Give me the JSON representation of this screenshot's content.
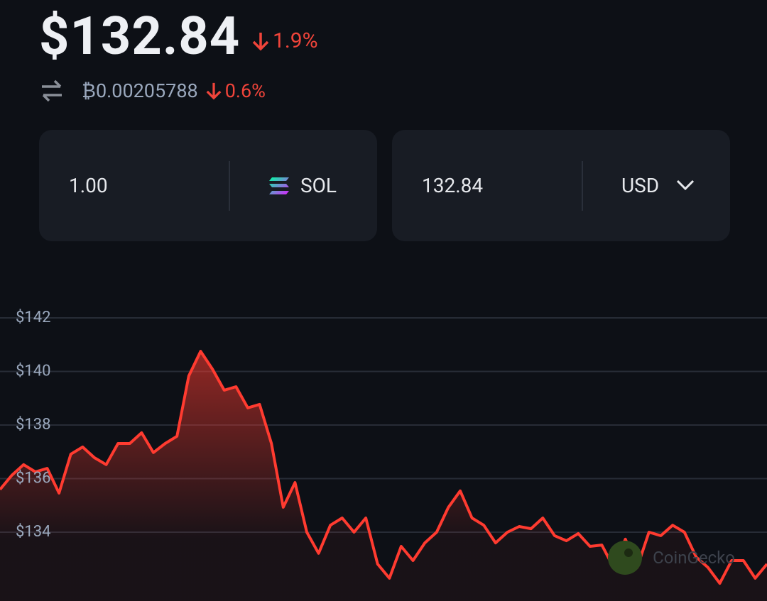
{
  "price": "$132.84",
  "price_change": "1.9%",
  "btc_price": "₿0.00205788",
  "btc_change": "0.6%",
  "converter": {
    "amount": "1.00",
    "coin": "SOL",
    "fiat_amount": "132.84",
    "fiat": "USD"
  },
  "watermark": "CoinGecko",
  "chart_data": {
    "type": "area",
    "color": "#ff3b30",
    "values": [
      135.59,
      136.12,
      136.52,
      136.25,
      136.38,
      135.46,
      136.91,
      137.18,
      136.78,
      136.52,
      137.31,
      137.31,
      137.71,
      136.97,
      137.31,
      137.58,
      139.83,
      140.75,
      140.09,
      139.3,
      139.43,
      138.64,
      138.77,
      137.31,
      134.93,
      135.85,
      134.0,
      133.21,
      134.26,
      134.53,
      134.0,
      134.53,
      132.81,
      132.28,
      133.47,
      132.94,
      133.6,
      134.0,
      134.93,
      135.54,
      134.53,
      134.26,
      133.6,
      134.0,
      134.21,
      134.13,
      134.53,
      133.87,
      133.68,
      133.95,
      133.47,
      133.52,
      132.68,
      133.74,
      132.68,
      134.0,
      133.87,
      134.26,
      134.0,
      133.07,
      132.68,
      132.09,
      132.94,
      132.94,
      132.28,
      132.81
    ],
    "ylim": [
      131.43,
      143.27
    ],
    "yticks": [
      {
        "value": 134,
        "label": "$134"
      },
      {
        "value": 136,
        "label": "$136"
      },
      {
        "value": 138,
        "label": "$138"
      },
      {
        "value": 140,
        "label": "$140"
      },
      {
        "value": 142,
        "label": "$142"
      }
    ],
    "grid": true
  }
}
